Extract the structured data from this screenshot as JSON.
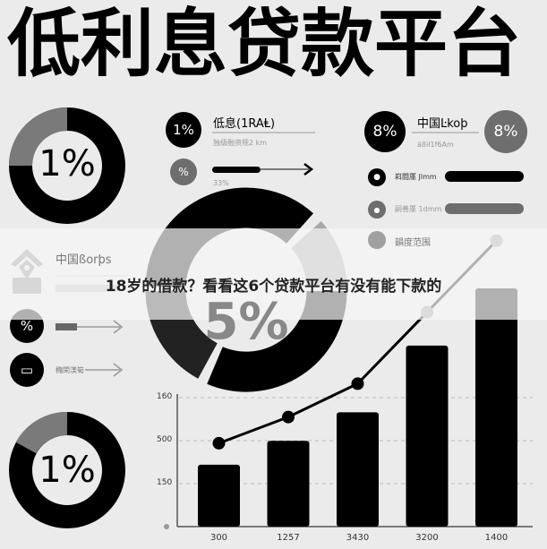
{
  "title": "低利息贷款平台",
  "caption": "18岁的借款？看看这6个贷款平台有没有能下款的",
  "donut_top_left": {
    "label": "1%"
  },
  "donut_bottom_left": {
    "label": "1%"
  },
  "donut_center": {
    "label": "5%"
  },
  "stat_left": {
    "badge": "1%",
    "heading": "低息(1RAⱠ)",
    "sub": "独级融资规2 km",
    "badge2": "%",
    "progress_label": "33%",
    "progress": 0.33
  },
  "stat_right": {
    "badge": "8%",
    "heading": "中国Ŀkoþ",
    "sub": "ä8ił1f6Am",
    "badge2": "8%"
  },
  "right_rows": [
    {
      "label": "嵙闘厪 Jlmm"
    },
    {
      "label": "嗣善厪 1dmm"
    },
    {
      "label": "韻度范围"
    }
  ],
  "left_rows": [
    {
      "label": "中国ßorþs"
    },
    {
      "badge": "%"
    },
    {
      "label": "橢閑渼筍"
    }
  ],
  "colors": {
    "black": "#000000",
    "gray": "#6e6e6e",
    "light_gray": "#a8a8a8",
    "background": "#ebebeb"
  },
  "chart_data": {
    "type": "bar",
    "categories": [
      "300",
      "1257",
      "3430",
      "3200",
      "1400"
    ],
    "y_tick_labels": [
      "160",
      "500",
      "150"
    ],
    "bar_levels": [
      0.26,
      0.36,
      0.48,
      0.76,
      1.0
    ],
    "line_levels": [
      0.35,
      0.46,
      0.6,
      0.9,
      1.2
    ],
    "grid": true
  }
}
